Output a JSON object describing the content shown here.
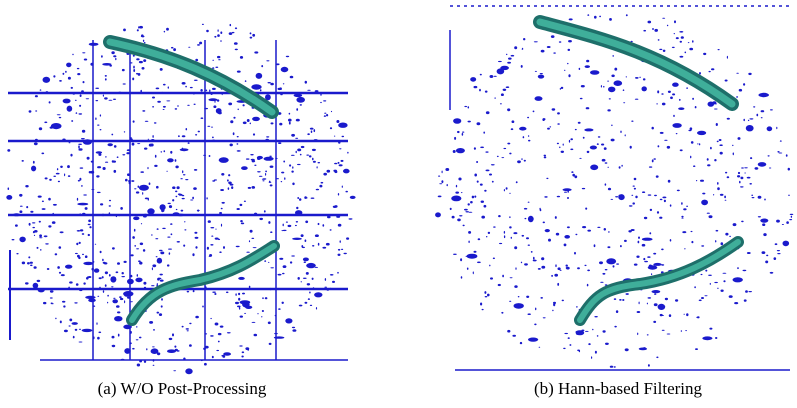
{
  "figure": {
    "panels": [
      {
        "caption": "(a) W/O Post-Processing"
      },
      {
        "caption": "(b) Hann-based Filtering"
      }
    ]
  }
}
